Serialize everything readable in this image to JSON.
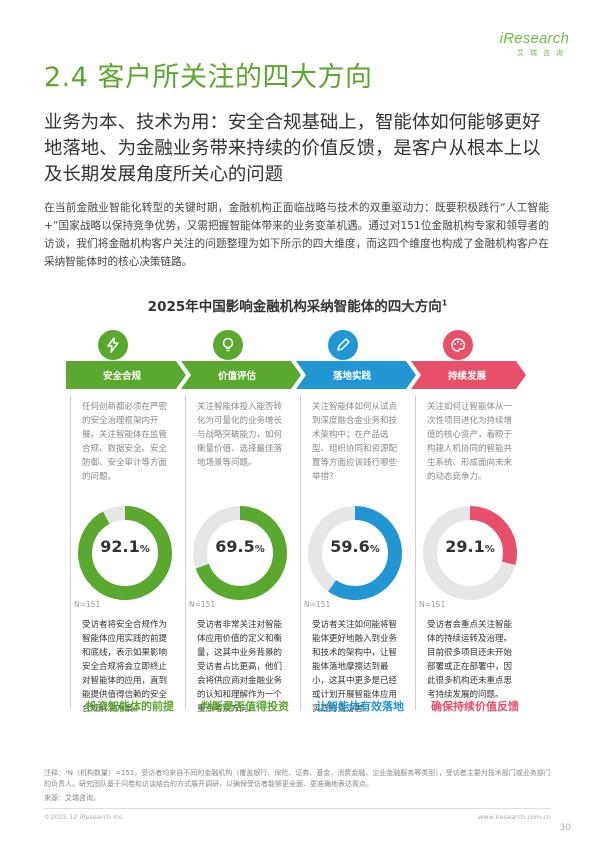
{
  "logo": {
    "brand": "iResearch",
    "sub": "艾瑞咨询"
  },
  "section_title": "2.4 客户所关注的四大方向",
  "lead": "业务为本、技术为用：安全合规基础上，智能体如何能够更好地落地、为金融业务带来持续的价值反馈，是客户从根本上以及长期发展角度所关心的问题",
  "paragraph": "在当前金融业智能化转型的关键时期，金融机构正面临战略与技术的双重驱动力：既要积极践行“人工智能+”国家战略以保持竞争优势，又需把握智能体带来的业务变革机遇。通过对151位金融机构专家和领导者的访谈，我们将金融机构客户关注的问题整理为如下所示的四大维度，而这四个维度也构成了金融机构客户在采纳智能体时的核心决策链路。",
  "chart_title": "2025年中国影响金融机构采纳智能体的四大方向",
  "chart_title_sup": "1",
  "columns": [
    {
      "label": "安全合规",
      "color": "#5ba82e",
      "icon": "lightning-icon",
      "desc": "任何创新都必须在严密的安全治理框架内开展。关注智能体在监管合规、数据安全、安全防御、安全审计等方面的问题。",
      "value": "92.1",
      "pct": "%",
      "n": "N=151",
      "body": "受访者将安全合规作为智能体应用实践的前提和底线，表示如果影响安全合规将会立即终止对智能体的应用，直到能提供值得信赖的安全合规解决方案。",
      "foot": "投资智能体的前提"
    },
    {
      "label": "价值评估",
      "color": "#5ba82e",
      "icon": "lightbulb-icon",
      "desc": "关注智能体投入能否转化为可量化的业务增长与战略突破能力，如何衡量价值、选择最佳落地场景等问题。",
      "value": "69.5",
      "pct": "%",
      "n": "N=151",
      "body": "受访者非常关注对智能体应用价值的定义和衡量，这其中业务背景的受访者占比更高，他们会将供应商对金融业务的认知和理解作为一个重点考察方向。",
      "foot": "判断是否值得投资"
    },
    {
      "label": "落地实践",
      "color": "#2196d3",
      "icon": "pencil-icon",
      "desc": "关注智能体如何从试点到深度融合金业务和技术架构中；在产品选型、组织协同和资源配置等方面应该践行哪些举措？",
      "value": "59.6",
      "pct": "%",
      "n": "N=151",
      "body": "受访者关注如何能将智能体更好地融入到业务和技术的架构中，让智能体落地摩擦达到最小，这其中更多是已经或计划开展智能体应用实践的受访者。",
      "foot": "让智能体有效落地"
    },
    {
      "label": "持续发展",
      "color": "#e8506a",
      "icon": "palette-icon",
      "desc": "关注如何让智能体从一次性项目进化为持续增值的核心资产，着眼于构建人机协同的智能共生系统、形成面向未来的动态竞争力。",
      "value": "29.1",
      "pct": "%",
      "n": "N=151",
      "body": "受访者会重点关注智能体的持续运转及治理。目前很多项目还未开始部署或正在部署中，因此很多机构还未重点思考持续发展的问题。",
      "foot": "确保持续价值反馈"
    }
  ],
  "chart_data": {
    "type": "pie",
    "categories": [
      "安全合规",
      "价值评估",
      "落地实践",
      "持续发展"
    ],
    "values": [
      92.1,
      69.5,
      59.6,
      29.1
    ],
    "unit": "%",
    "n": "N=151",
    "colors": [
      "#5ba82e",
      "#5ba82e",
      "#2196d3",
      "#e8506a"
    ]
  },
  "note": "注释：¹N（机构数量）=151，受访者均来自不同的金融机构（覆盖银行、保险、证券、基金、消费金融、企业金融服务等类型），受访者主要为技术部门或业务部门的负责人。研究团队基于问卷和访谈结合的方式展开调研，以确保受访者能够更全面、更准确地表达观点。",
  "source": "来源：艾瑞咨询。",
  "copyright": "©2025.12 iResearch Inc.",
  "site": "www.iresearch.com.cn",
  "page_number": "30"
}
